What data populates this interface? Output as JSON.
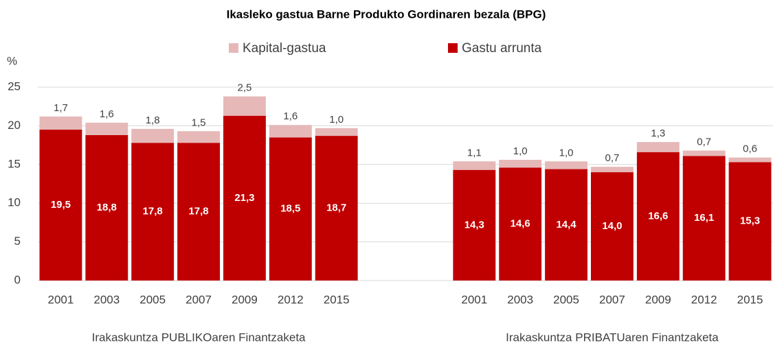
{
  "chart_data": {
    "type": "stacked_bar",
    "title": "Ikasleko gastua Barne Produkto Gordinaren bezala (BPG)",
    "y_label": "%",
    "categories": [
      "2001",
      "2003",
      "2005",
      "2007",
      "2009",
      "2012",
      "2015",
      null,
      null,
      "2001",
      "2003",
      "2005",
      "2007",
      "2009",
      "2012",
      "2015"
    ],
    "groups": [
      "Irakaskuntza PUBLIKOaren Finantzaketa",
      "Irakaskuntza PRIBATUaren Finantzaketa"
    ],
    "series": [
      {
        "name": "Gastu arrunta",
        "color": "#c00000",
        "values": [
          19.5,
          18.8,
          17.8,
          17.8,
          21.3,
          18.5,
          18.7,
          null,
          null,
          14.3,
          14.6,
          14.4,
          14.0,
          16.6,
          16.1,
          15.3
        ],
        "value_labels": [
          "19,5",
          "18,8",
          "17,8",
          "17,8",
          "21,3",
          "18,5",
          "18,7",
          null,
          null,
          "14,3",
          "14,6",
          "14,4",
          "14,0",
          "16,6",
          "16,1",
          "15,3"
        ]
      },
      {
        "name": "Kapital-gastua",
        "color": "#e6b8b8",
        "values": [
          1.7,
          1.6,
          1.8,
          1.5,
          2.5,
          1.6,
          1.0,
          null,
          null,
          1.1,
          1.0,
          1.0,
          0.7,
          1.3,
          0.7,
          0.6
        ],
        "value_labels": [
          "1,7",
          "1,6",
          "1,8",
          "1,5",
          "2,5",
          "1,6",
          "1,0",
          null,
          null,
          "1,1",
          "1,0",
          "1,0",
          "0,7",
          "1,3",
          "0,7",
          "0,6"
        ]
      }
    ],
    "ylim": [
      0,
      25
    ],
    "yticks": [
      0,
      5,
      10,
      15,
      20,
      25
    ],
    "grid": true
  }
}
